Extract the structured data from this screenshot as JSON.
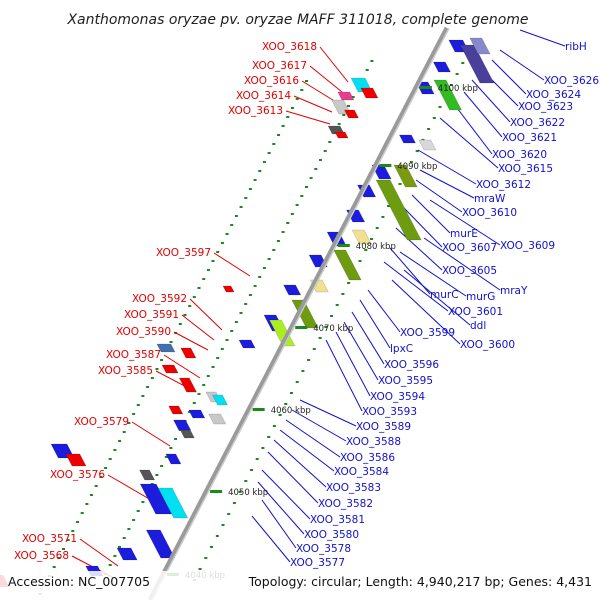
{
  "title": "Xanthomonas oryzae pv. oryzae MAFF 311018, complete genome",
  "accession": "Accession: NC_007705",
  "stats": "Topology: circular; Length: 4,940,217 bp; Genes: 4,431",
  "colors": {
    "backbone": "#999999",
    "left_label": "#e00000",
    "right_label": "#1010cc",
    "dots": "#1a8a1a"
  },
  "kbp_marks": [
    "4100 kbp",
    "4090 kbp",
    "4080 kbp",
    "4070 kbp",
    "4060 kbp",
    "4050 kbp",
    "4040 kbp"
  ],
  "left_genes": [
    "XOO_3618",
    "XOO_3617",
    "XOO_3616",
    "XOO_3614",
    "XOO_3613",
    "XOO_3597",
    "XOO_3592",
    "XOO_3591",
    "XOO_3590",
    "XOO_3587",
    "XOO_3585",
    "XOO_3579",
    "XOO_3576",
    "XOO_3571",
    "XOO_3568"
  ],
  "right_genes": [
    "ribH",
    "XOO_3626",
    "XOO_3624",
    "XOO_3623",
    "XOO_3622",
    "XOO_3621",
    "XOO_3620",
    "XOO_3615",
    "XOO_3612",
    "mraW",
    "XOO_3610",
    "murE",
    "XOO_3609",
    "XOO_3607",
    "XOO_3605",
    "mraY",
    "murC",
    "murG",
    "XOO_3601",
    "ddl",
    "XOO_3600",
    "XOO_3599",
    "lpxC",
    "XOO_3596",
    "XOO_3595",
    "XOO_3594",
    "XOO_3593",
    "XOO_3589",
    "XOO_3588",
    "XOO_3586",
    "XOO_3584",
    "XOO_3583",
    "XOO_3582",
    "XOO_3581",
    "XOO_3580",
    "XOO_3578",
    "XOO_3577"
  ]
}
